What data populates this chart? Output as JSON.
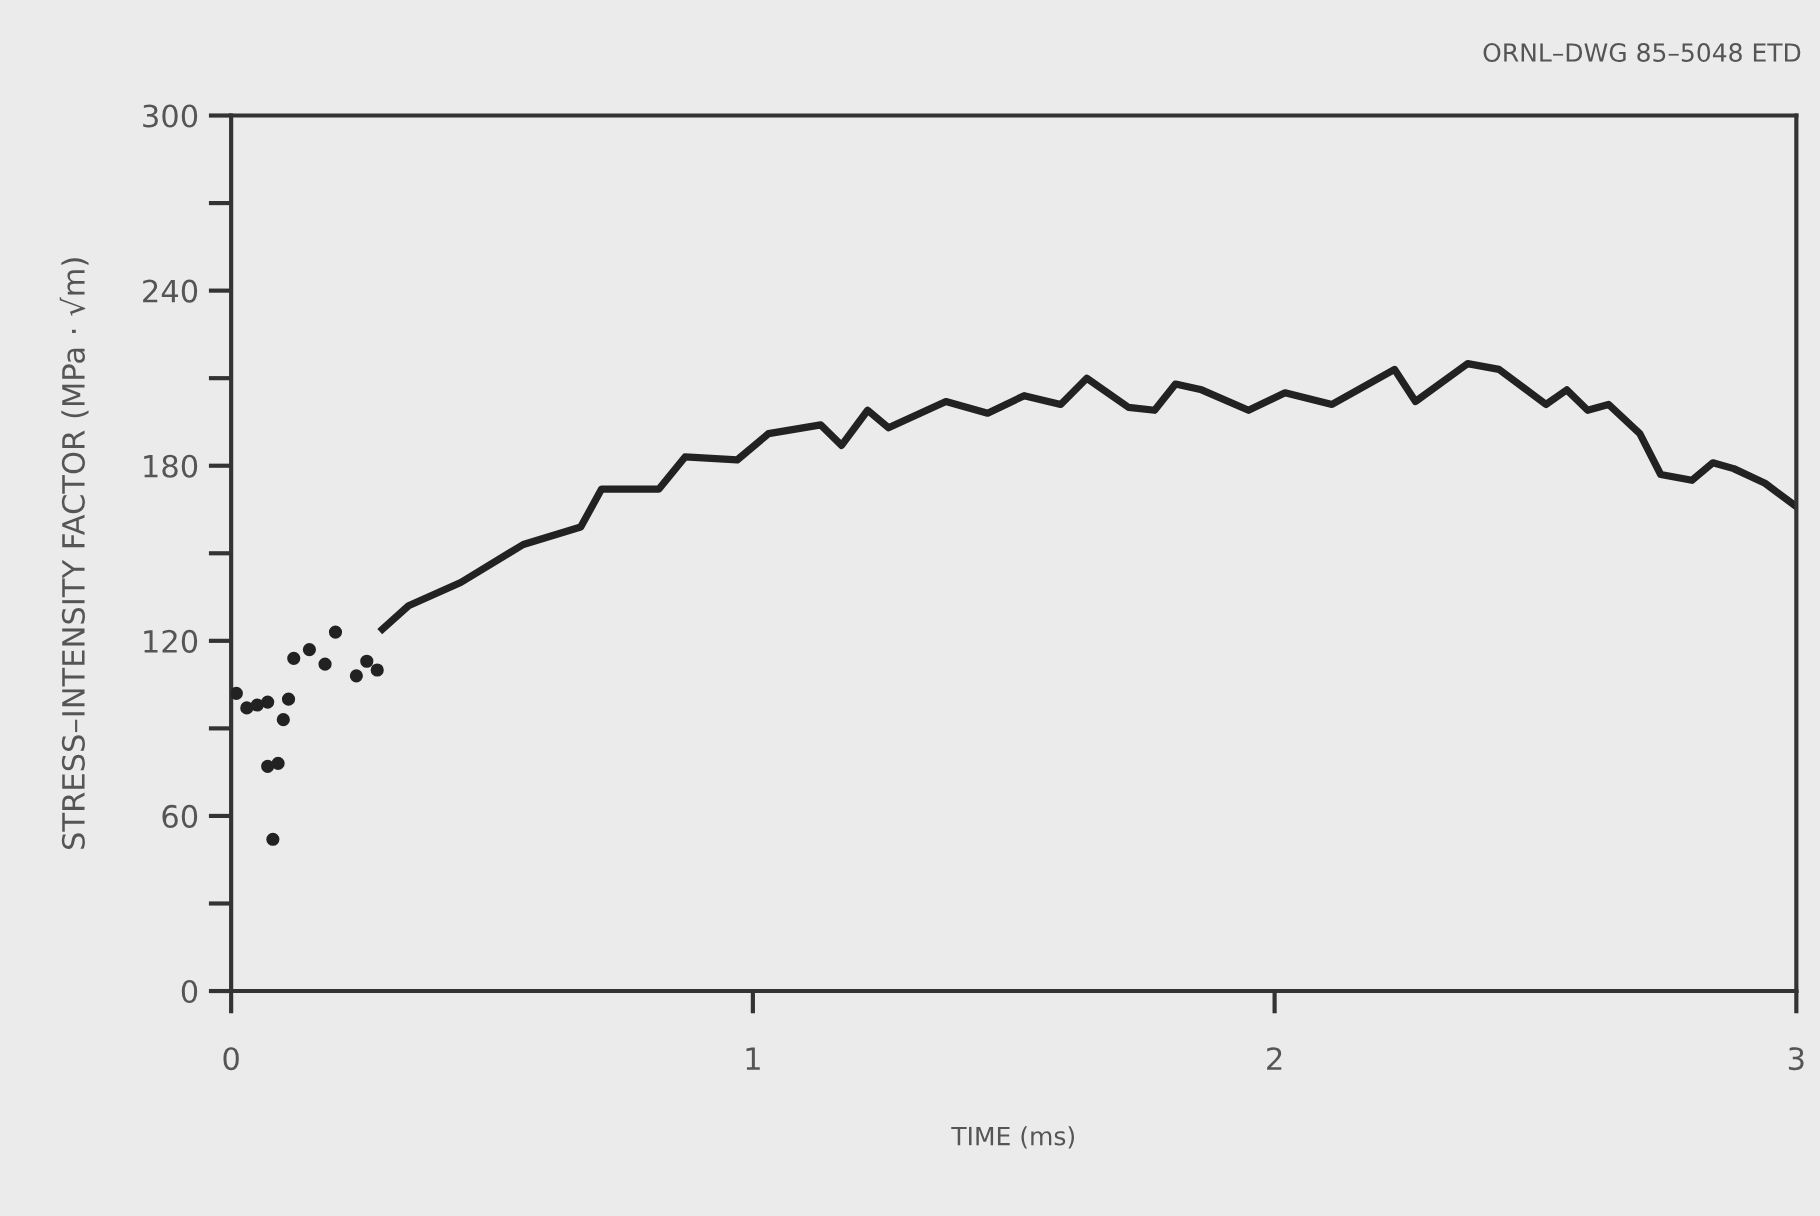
{
  "chart_data": {
    "type": "line",
    "xlabel": "TIME (ms)",
    "ylabel": "STRESS–INTENSITY FACTOR (MPa · √m)",
    "annotations": [
      "ORNL–DWG 85–5048 ETD"
    ],
    "xlim": [
      0,
      3
    ],
    "ylim": [
      0,
      300
    ],
    "xticks": [
      0,
      1,
      2,
      3
    ],
    "yticks": [
      0,
      {
        "value": 30,
        "label": null
      },
      60,
      {
        "value": 90,
        "label": null
      },
      120,
      {
        "value": 150,
        "label": null
      },
      180,
      {
        "value": 210,
        "label": null
      },
      240,
      {
        "value": 270,
        "label": null
      },
      300
    ],
    "grid": false,
    "series": [
      {
        "type": "scatter",
        "color": "#222222",
        "marker": "circle",
        "x": [
          0.01,
          0.03,
          0.05,
          0.07,
          0.11,
          0.1,
          0.07,
          0.09,
          0.08,
          0.12,
          0.15,
          0.18,
          0.2,
          0.24,
          0.26,
          0.28
        ],
        "values": [
          102,
          97,
          98,
          99,
          100,
          93,
          77,
          78,
          52,
          114,
          117,
          112,
          123,
          108,
          113,
          110
        ]
      },
      {
        "color": "#222222",
        "x": [
          0.29,
          0.34,
          0.44,
          0.56,
          0.67,
          0.71,
          0.82,
          0.87,
          0.97,
          1.03,
          1.13,
          1.17,
          1.22,
          1.26,
          1.37,
          1.45,
          1.52,
          1.59,
          1.64,
          1.72,
          1.77,
          1.81,
          1.86,
          1.95,
          2.02,
          2.11,
          2.23,
          2.27,
          2.37,
          2.43,
          2.52,
          2.56,
          2.6,
          2.64,
          2.7,
          2.74,
          2.8,
          2.84,
          2.88,
          2.94,
          3.0
        ],
        "values": [
          124,
          132,
          140,
          153,
          159,
          172,
          172,
          183,
          182,
          191,
          194,
          187,
          199,
          193,
          202,
          198,
          204,
          201,
          210,
          200,
          199,
          208,
          206,
          199,
          205,
          201,
          213,
          202,
          215,
          213,
          201,
          206,
          199,
          201,
          191,
          177,
          175,
          181,
          179,
          174,
          166
        ]
      }
    ]
  }
}
